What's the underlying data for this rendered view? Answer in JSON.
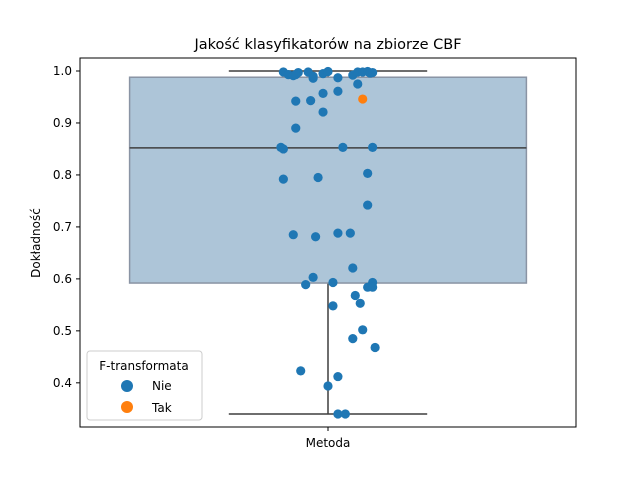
{
  "chart_data": {
    "type": "box_strip",
    "title": "Jakość klasyfikatorów na zbiorze CBF",
    "xlabel": "",
    "ylabel": "Dokładność",
    "categories": [
      "Metoda"
    ],
    "ylim": [
      0.315,
      1.025
    ],
    "yticks": [
      0.4,
      0.5,
      0.6,
      0.7,
      0.8,
      0.9,
      1.0
    ],
    "ytick_labels": [
      "0.4",
      "0.5",
      "0.6",
      "0.7",
      "0.8",
      "0.9",
      "1.0"
    ],
    "grid": false,
    "box": {
      "whisker_low": 0.34,
      "q1": 0.592,
      "median": 0.852,
      "q3": 0.988,
      "whisker_high": 1.0,
      "color": "#adc5d8",
      "edge_color": "#8a94a4"
    },
    "legend": {
      "title": "F-transformata",
      "placement": "lower-left",
      "entries": [
        {
          "name": "Nie",
          "color": "#1f77b4"
        },
        {
          "name": "Tak",
          "color": "#ff7f0e"
        }
      ]
    },
    "series": [
      {
        "name": "Nie",
        "color": "#1f77b4",
        "points": [
          {
            "x": -0.09,
            "y": 0.998
          },
          {
            "x": -0.08,
            "y": 0.993
          },
          {
            "x": -0.07,
            "y": 0.991
          },
          {
            "x": -0.06,
            "y": 0.997
          },
          {
            "x": -0.065,
            "y": 0.993
          },
          {
            "x": -0.04,
            "y": 0.998
          },
          {
            "x": -0.03,
            "y": 0.986
          },
          {
            "x": -0.01,
            "y": 0.995
          },
          {
            "x": 0.0,
            "y": 0.999
          },
          {
            "x": 0.02,
            "y": 0.987
          },
          {
            "x": 0.05,
            "y": 0.992
          },
          {
            "x": 0.06,
            "y": 0.998
          },
          {
            "x": 0.07,
            "y": 0.998
          },
          {
            "x": 0.08,
            "y": 0.999
          },
          {
            "x": 0.085,
            "y": 0.996
          },
          {
            "x": 0.09,
            "y": 0.997
          },
          {
            "x": -0.03,
            "y": 0.99
          },
          {
            "x": 0.06,
            "y": 0.975
          },
          {
            "x": 0.02,
            "y": 0.961
          },
          {
            "x": -0.01,
            "y": 0.957
          },
          {
            "x": -0.065,
            "y": 0.942
          },
          {
            "x": -0.035,
            "y": 0.943
          },
          {
            "x": -0.01,
            "y": 0.921
          },
          {
            "x": -0.065,
            "y": 0.89
          },
          {
            "x": -0.095,
            "y": 0.853
          },
          {
            "x": -0.09,
            "y": 0.85
          },
          {
            "x": 0.03,
            "y": 0.853
          },
          {
            "x": 0.09,
            "y": 0.853
          },
          {
            "x": 0.08,
            "y": 0.803
          },
          {
            "x": -0.09,
            "y": 0.792
          },
          {
            "x": -0.02,
            "y": 0.795
          },
          {
            "x": 0.08,
            "y": 0.742
          },
          {
            "x": -0.07,
            "y": 0.685
          },
          {
            "x": -0.025,
            "y": 0.681
          },
          {
            "x": 0.02,
            "y": 0.688
          },
          {
            "x": 0.045,
            "y": 0.688
          },
          {
            "x": 0.05,
            "y": 0.621
          },
          {
            "x": -0.03,
            "y": 0.603
          },
          {
            "x": 0.01,
            "y": 0.593
          },
          {
            "x": -0.045,
            "y": 0.589
          },
          {
            "x": 0.09,
            "y": 0.593
          },
          {
            "x": 0.08,
            "y": 0.584
          },
          {
            "x": 0.09,
            "y": 0.584
          },
          {
            "x": 0.055,
            "y": 0.568
          },
          {
            "x": 0.065,
            "y": 0.553
          },
          {
            "x": 0.01,
            "y": 0.548
          },
          {
            "x": 0.07,
            "y": 0.502
          },
          {
            "x": 0.05,
            "y": 0.485
          },
          {
            "x": 0.095,
            "y": 0.468
          },
          {
            "x": -0.055,
            "y": 0.423
          },
          {
            "x": 0.02,
            "y": 0.412
          },
          {
            "x": 0.0,
            "y": 0.394
          },
          {
            "x": 0.02,
            "y": 0.34
          },
          {
            "x": 0.035,
            "y": 0.34
          }
        ]
      },
      {
        "name": "Tak",
        "color": "#ff7f0e",
        "points": [
          {
            "x": 0.07,
            "y": 0.946
          }
        ]
      }
    ]
  }
}
